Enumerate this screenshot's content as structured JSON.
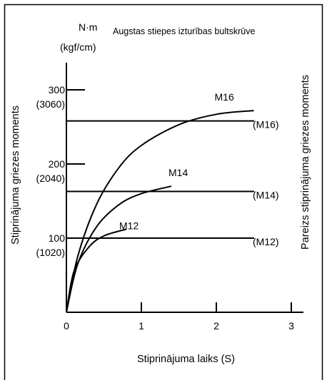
{
  "chart_data": {
    "type": "line",
    "title": "Augstas stiepes izturības bultskrūve",
    "ylabel_left": "Stiprinājuma griezes moments",
    "ylabel_right": "Pareizs stiprinājuma griezes moments",
    "xlabel": "Stiprinājuma laiks (S)",
    "y_unit_top": "N·m",
    "y_unit_bottom": "(kgf/cm)",
    "xlim": [
      0,
      3.2
    ],
    "ylim": [
      0,
      343
    ],
    "x_ticks": [
      {
        "value": 0,
        "label": "0"
      },
      {
        "value": 1,
        "label": "1"
      },
      {
        "value": 2,
        "label": "2"
      },
      {
        "value": 3,
        "label": "3"
      }
    ],
    "y_ticks": [
      {
        "value": 100,
        "label": "100",
        "sublabel": "(1020)"
      },
      {
        "value": 200,
        "label": "200",
        "sublabel": "(2040)"
      },
      {
        "value": 300,
        "label": "300",
        "sublabel": "(3060)"
      }
    ],
    "series": [
      {
        "name": "M16",
        "x": [
          0,
          0.15,
          0.4,
          0.7,
          1.0,
          1.5,
          2.0,
          2.5
        ],
        "y": [
          0,
          75,
          145,
          195,
          225,
          253,
          267,
          272
        ]
      },
      {
        "name": "M14",
        "x": [
          0,
          0.15,
          0.4,
          0.7,
          1.0,
          1.4
        ],
        "y": [
          0,
          65,
          115,
          145,
          160,
          170
        ]
      },
      {
        "name": "M12",
        "x": [
          0,
          0.1,
          0.3,
          0.5,
          0.8
        ],
        "y": [
          0,
          55,
          88,
          103,
          112
        ]
      }
    ],
    "reference_lines": [
      {
        "name": "(M16)",
        "y": 258
      },
      {
        "name": "(M14)",
        "y": 163
      },
      {
        "name": "(M12)",
        "y": 100
      }
    ]
  }
}
